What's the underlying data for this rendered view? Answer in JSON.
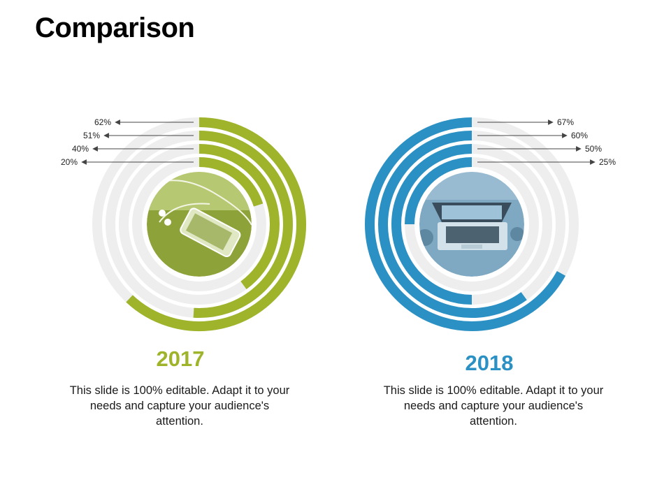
{
  "slide": {
    "title": "Comparison"
  },
  "colors": {
    "green": "#9fb42a",
    "blue": "#2b91c4",
    "track": "#efeeef",
    "arrow": "#444444"
  },
  "chart_data": [
    {
      "type": "radial-bar",
      "title": "2017",
      "values": [
        62,
        51,
        40,
        20
      ],
      "value_labels": [
        "62%",
        "51%",
        "40%",
        "20%"
      ],
      "direction": "clockwise",
      "color": "#9fb42a",
      "center_icon": "smartphone-with-earphones-photo",
      "description": "This slide is 100% editable. Adapt it to your needs and capture your audience's attention."
    },
    {
      "type": "radial-bar",
      "title": "2018",
      "values": [
        67,
        60,
        50,
        25
      ],
      "value_labels": [
        "67%",
        "60%",
        "50%",
        "25%"
      ],
      "direction": "counterclockwise",
      "color": "#2b91c4",
      "center_icon": "laptop-photo",
      "description": "This slide is 100% editable. Adapt it to your needs and capture your audience's attention."
    }
  ]
}
